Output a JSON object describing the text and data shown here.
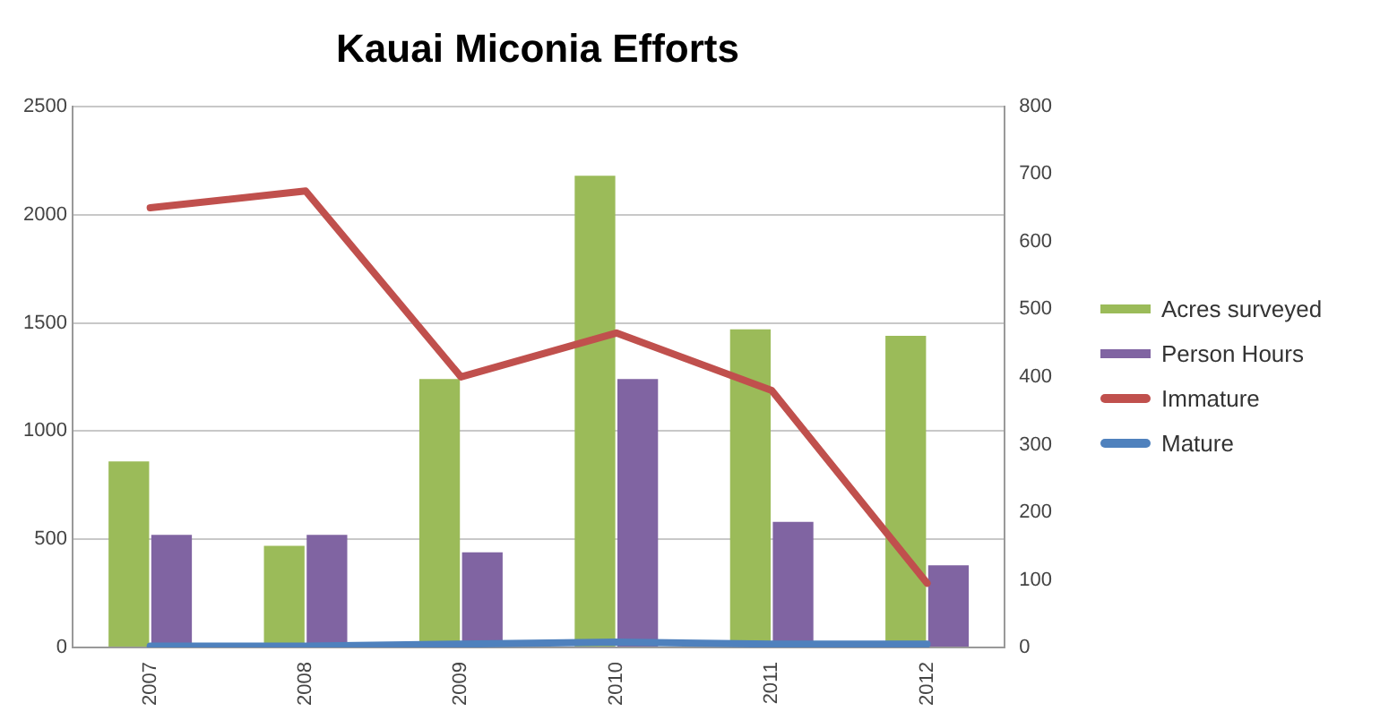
{
  "chart_data": {
    "type": "bar",
    "title": "Kauai Miconia Efforts",
    "categories": [
      "2007",
      "2008",
      "2009",
      "2010",
      "2011",
      "2012"
    ],
    "series": [
      {
        "name": "Acres surveyed",
        "color": "#9bbb59",
        "values": [
          860,
          470,
          1240,
          2180,
          1470,
          1440
        ]
      },
      {
        "name": "Person Hours",
        "color": "#8064a2",
        "values": [
          520,
          520,
          440,
          1240,
          580,
          380
        ]
      },
      {
        "name": "Immature",
        "type": "line",
        "axis": "y2",
        "color": "#c0504d",
        "values": [
          650,
          675,
          400,
          465,
          380,
          95
        ]
      },
      {
        "name": "Mature",
        "type": "line",
        "axis": "y2",
        "color": "#4f81bd",
        "values": [
          2,
          2,
          5,
          8,
          5,
          5
        ]
      }
    ],
    "ylim": [
      0,
      2500
    ],
    "yticks": [
      0,
      500,
      1000,
      1500,
      2000,
      2500
    ],
    "y2lim": [
      0,
      800
    ],
    "y2ticks": [
      0,
      100,
      200,
      300,
      400,
      500,
      600,
      700,
      800
    ],
    "grid": "y",
    "legend": "right",
    "marker": "none"
  }
}
